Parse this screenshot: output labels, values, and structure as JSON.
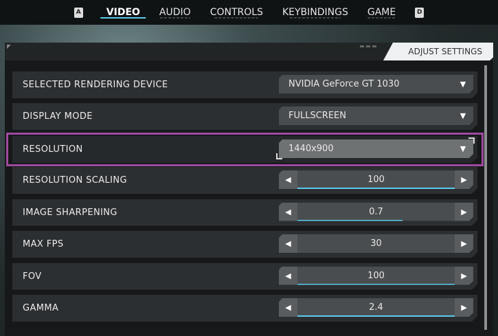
{
  "tabs": {
    "left_key": "A",
    "right_key": "D",
    "items": [
      {
        "label": "VIDEO",
        "active": true
      },
      {
        "label": "AUDIO"
      },
      {
        "label": "CONTROLS"
      },
      {
        "label": "KEYBINDINGS"
      },
      {
        "label": "GAME"
      }
    ]
  },
  "panel": {
    "title": "ADJUST SETTINGS"
  },
  "settings": {
    "device": {
      "label": "SELECTED RENDERING DEVICE",
      "value": "NVIDIA GeForce GT 1030"
    },
    "display_mode": {
      "label": "DISPLAY MODE",
      "value": "FULLSCREEN"
    },
    "resolution": {
      "label": "RESOLUTION",
      "value": "1440x900",
      "selected": true
    },
    "resolution_scaling": {
      "label": "RESOLUTION SCALING",
      "value": "100",
      "fill": 1.0
    },
    "image_sharpening": {
      "label": "IMAGE SHARPENING",
      "value": "0.7",
      "fill": 0.67
    },
    "max_fps": {
      "label": "MAX FPS",
      "value": "30",
      "fill": 0
    },
    "fov": {
      "label": "FOV",
      "value": "100",
      "fill": 1.0
    },
    "gamma": {
      "label": "GAMMA",
      "value": "2.4",
      "fill": 1.0
    }
  },
  "colors": {
    "accent": "#5ccbec",
    "selection": "#a04aa0"
  }
}
